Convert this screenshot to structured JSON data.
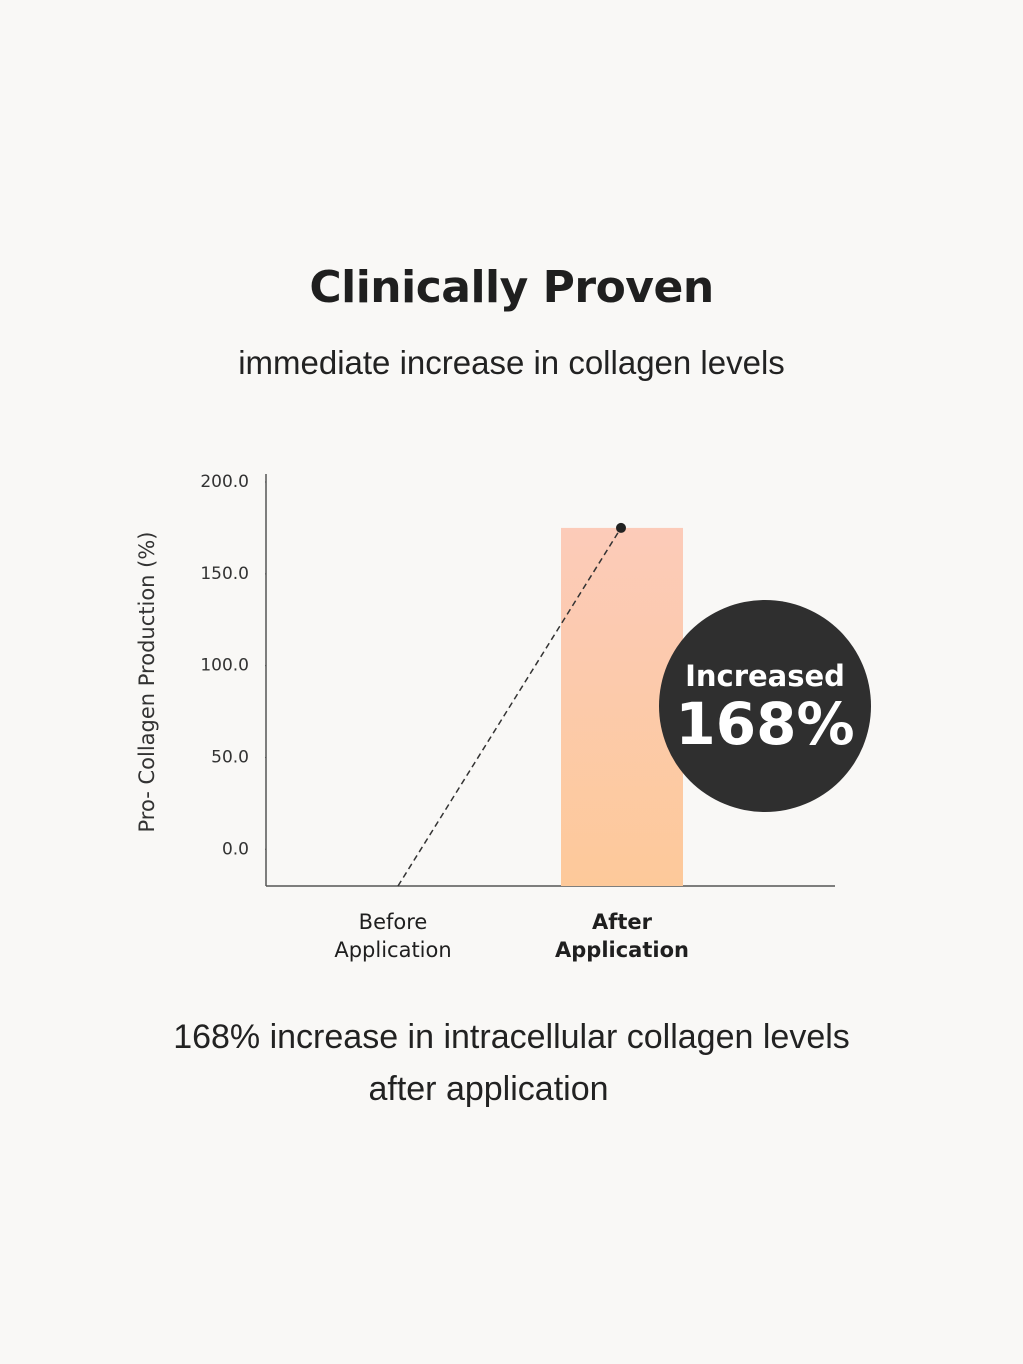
{
  "chart_data": {
    "type": "bar",
    "title": "Clinically Proven",
    "subtitle": "immediate increase in collagen levels",
    "ylabel": "Pro- Collagen Production (%)",
    "categories": [
      "Before Application",
      "After Application"
    ],
    "values": [
      null,
      175
    ],
    "color_top": "#fccbb9",
    "color_bottom": "#fdc99a",
    "ylim": [
      -20,
      200
    ],
    "yticks": [
      {
        "value": 0,
        "label": "0.0"
      },
      {
        "value": 50,
        "label": "50.0"
      },
      {
        "value": 100,
        "label": "100.0"
      },
      {
        "value": 150,
        "label": "150.0"
      },
      {
        "value": 200,
        "label": "200.0"
      }
    ],
    "annotation": [
      "Increased",
      "168%"
    ],
    "caption": [
      "168% increase in intracellular collagen levels",
      "after application"
    ]
  }
}
